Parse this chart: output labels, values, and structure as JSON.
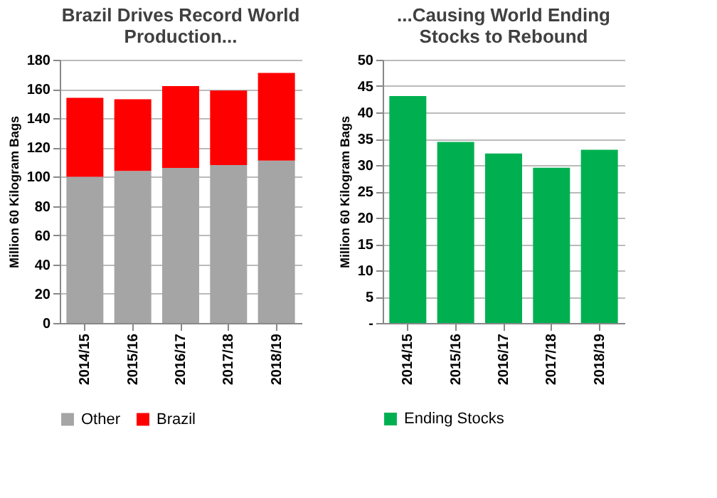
{
  "chart_data": [
    {
      "type": "bar",
      "title": "Brazil Drives Record World Production...",
      "ylabel": "Million 60 Kilogram Bags",
      "categories": [
        "2014/15",
        "2015/16",
        "2016/17",
        "2017/18",
        "2018/19"
      ],
      "stacked": true,
      "series": [
        {
          "name": "Other",
          "color": "#a5a5a5",
          "values": [
            100,
            104,
            106,
            108,
            111
          ]
        },
        {
          "name": "Brazil",
          "color": "#ff0000",
          "values": [
            54,
            49,
            56,
            51,
            60
          ]
        }
      ],
      "ylim": [
        0,
        180
      ],
      "yticks": [
        0,
        20,
        40,
        60,
        80,
        100,
        120,
        140,
        160,
        180
      ],
      "grid": "y",
      "legend": "bottom"
    },
    {
      "type": "bar",
      "title": "...Causing World Ending Stocks to Rebound",
      "ylabel": "Million 60 Kilogram Bags",
      "categories": [
        "2014/15",
        "2015/16",
        "2016/17",
        "2017/18",
        "2018/19"
      ],
      "series": [
        {
          "name": "Ending Stocks",
          "color": "#00b050",
          "values": [
            43.1,
            34.4,
            32.2,
            29.5,
            32.9
          ]
        }
      ],
      "ylim": [
        0,
        50
      ],
      "yticks": [
        {
          "value": 0,
          "label": "-"
        },
        5,
        10,
        15,
        20,
        25,
        30,
        35,
        40,
        45,
        50
      ],
      "grid": "y",
      "legend": "bottom"
    }
  ]
}
